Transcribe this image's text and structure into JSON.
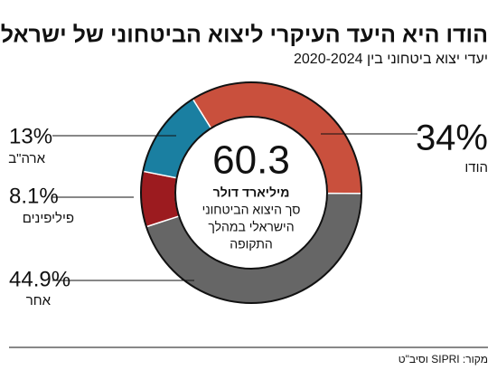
{
  "chart_data": {
    "type": "donut",
    "title": "הודו היא היעד העיקרי ליצוא הביטחוני של ישראל",
    "subtitle": "יעדי יצוא ביטחוני בין 2020-2024",
    "categories": [
      "הודו",
      "אחר",
      "פיליפינים",
      "ארה\"ב"
    ],
    "values": [
      34,
      44.9,
      8.1,
      13
    ],
    "value_labels": [
      "34%",
      "44.9%",
      "8.1%",
      "13%"
    ],
    "colors": [
      "#c9503d",
      "#666666",
      "#9c1b1f",
      "#1a7fa1"
    ],
    "center_value": "60.3",
    "center_unit": "מיליארד דולר",
    "center_text": [
      "סך היצוא הביטחוני",
      "הישראלי במהלך",
      "התקופה"
    ],
    "source": "מקור: SIPRI וסיב\"ט"
  }
}
